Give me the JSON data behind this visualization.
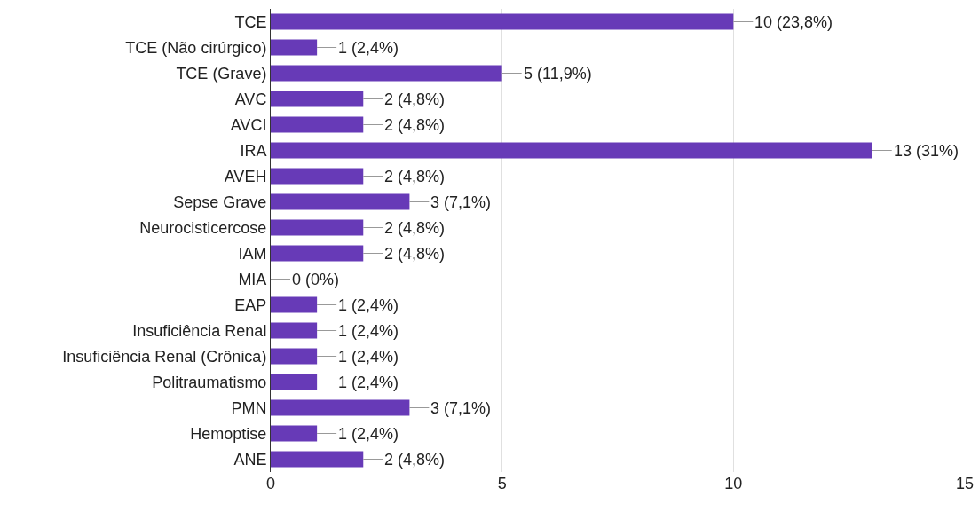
{
  "chart_data": {
    "type": "bar",
    "orientation": "horizontal",
    "categories": [
      "TCE",
      "TCE (Não cirúrgico)",
      "TCE (Grave)",
      "AVC",
      "AVCI",
      "IRA",
      "AVEH",
      "Sepse Grave",
      "Neurocisticercose",
      "IAM",
      "MIA",
      "EAP",
      "Insuficiência Renal",
      "Insuficiência Renal (Crônica)",
      "Politraumatismo",
      "PMN",
      "Hemoptise",
      "ANE"
    ],
    "values": [
      10,
      1,
      5,
      2,
      2,
      13,
      2,
      3,
      2,
      2,
      0,
      1,
      1,
      1,
      1,
      3,
      1,
      2
    ],
    "value_labels": [
      "10 (23,8%)",
      "1 (2,4%)",
      "5 (11,9%)",
      "2 (4,8%)",
      "2 (4,8%)",
      "13 (31%)",
      "2 (4,8%)",
      "3 (7,1%)",
      "2 (4,8%)",
      "2 (4,8%)",
      "0 (0%)",
      "1 (2,4%)",
      "1 (2,4%)",
      "1 (2,4%)",
      "1 (2,4%)",
      "3 (7,1%)",
      "1 (2,4%)",
      "2 (4,8%)"
    ],
    "color": "#673ab7",
    "xlim": [
      0,
      15
    ],
    "xticks": [
      0,
      5,
      10,
      15
    ],
    "grid": "x"
  }
}
